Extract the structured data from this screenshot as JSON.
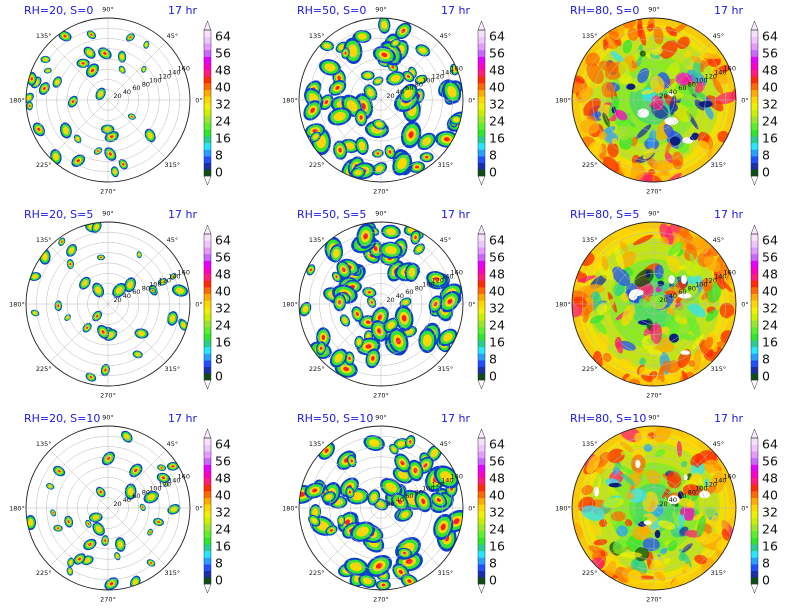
{
  "chart_data": {
    "type": "heatmap",
    "projection": "polar",
    "time_label": "17 hr",
    "angular_ticks": [
      "0°",
      "45°",
      "90°",
      "135°",
      "180°",
      "225°",
      "270°",
      "315°"
    ],
    "radial_ticks": [
      "20",
      "40",
      "60",
      "80",
      "100",
      "120",
      "140",
      "160"
    ],
    "colorbar": {
      "tick_labels": [
        "0",
        "8",
        "16",
        "24",
        "32",
        "40",
        "48",
        "56",
        "64"
      ],
      "range": [
        0,
        64
      ],
      "extend": "both",
      "colors": [
        "#0b4d14",
        "#1a2fa8",
        "#1f4fff",
        "#27a0ff",
        "#27e6ff",
        "#25d08f",
        "#2ee62e",
        "#5cf02a",
        "#9ae62a",
        "#c8f000",
        "#f0f000",
        "#ffd700",
        "#ffaa00",
        "#ff6a00",
        "#ff2a00",
        "#ff1e78",
        "#ff00c8",
        "#e600ff",
        "#cc66ff",
        "#e699ff",
        "#f0c4ff",
        "#f8e0ff"
      ]
    },
    "panels": [
      {
        "title": "RH=20, S=0",
        "rh": 20,
        "s": 0,
        "coverage": "sparse"
      },
      {
        "title": "RH=50, S=0",
        "rh": 50,
        "s": 0,
        "coverage": "medium"
      },
      {
        "title": "RH=80, S=0",
        "rh": 80,
        "s": 0,
        "coverage": "full"
      },
      {
        "title": "RH=20, S=5",
        "rh": 20,
        "s": 5,
        "coverage": "sparse"
      },
      {
        "title": "RH=50, S=5",
        "rh": 50,
        "s": 5,
        "coverage": "medium"
      },
      {
        "title": "RH=80, S=5",
        "rh": 80,
        "s": 5,
        "coverage": "full"
      },
      {
        "title": "RH=20, S=10",
        "rh": 20,
        "s": 10,
        "coverage": "sparse"
      },
      {
        "title": "RH=50, S=10",
        "rh": 50,
        "s": 10,
        "coverage": "medium"
      },
      {
        "title": "RH=80, S=10",
        "rh": 80,
        "s": 10,
        "coverage": "full"
      }
    ]
  }
}
